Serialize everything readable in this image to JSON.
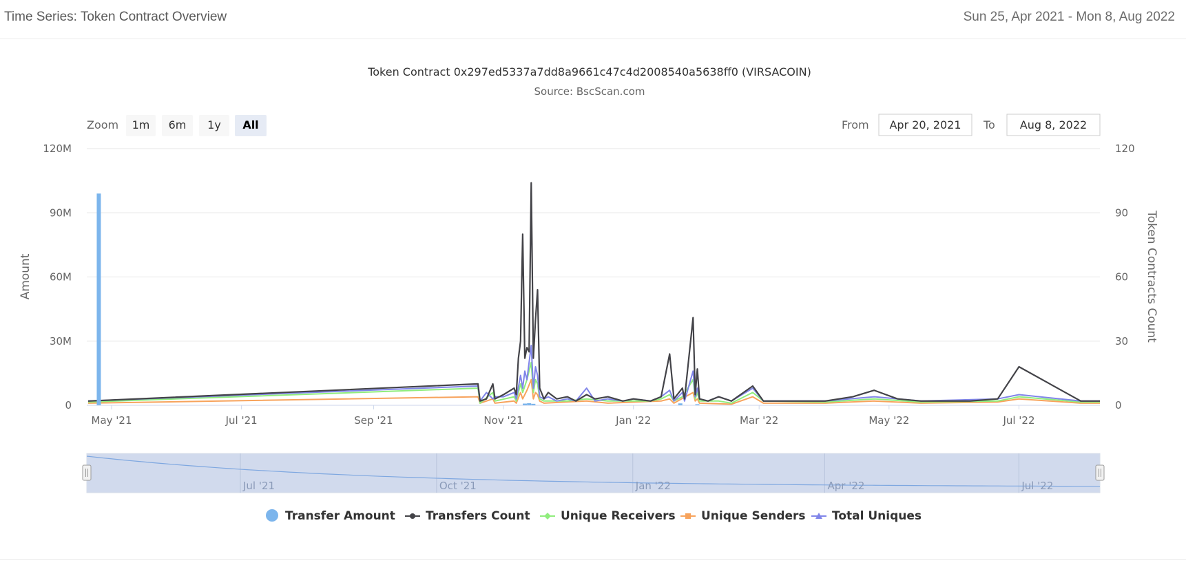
{
  "header": {
    "title": "Time Series: Token Contract Overview",
    "date_range": "Sun 25, Apr 2021 - Mon 8, Aug 2022"
  },
  "controls": {
    "zoom_label": "Zoom",
    "zoom_buttons": [
      "1m",
      "6m",
      "1y",
      "All"
    ],
    "active_zoom": "All",
    "from_label": "From",
    "from_value": "Apr 20, 2021",
    "to_label": "To",
    "to_value": "Aug 8, 2022"
  },
  "navigator": {
    "labels": [
      "Jul '21",
      "Oct '21",
      "Jan '22",
      "Apr '22",
      "Jul '22"
    ]
  },
  "chart_data": {
    "type": "line",
    "title": "Token Contract 0x297ed5337a7dd8a9661c47c4d2008540a5638ff0 (VIRSACOIN)",
    "subtitle": "Source: BscScan.com",
    "x_range": [
      "2021-04-20",
      "2022-08-08"
    ],
    "x_ticks": [
      "May '21",
      "Jul '21",
      "Sep '21",
      "Nov '21",
      "Jan '22",
      "Mar '22",
      "May '22",
      "Jul '22"
    ],
    "y_left": {
      "label": "Amount",
      "range": [
        0,
        120000000
      ],
      "ticks": [
        "0",
        "30M",
        "60M",
        "90M",
        "120M"
      ]
    },
    "y_right": {
      "label": "Token Contracts Count",
      "range": [
        0,
        120
      ],
      "ticks": [
        "0",
        "30",
        "60",
        "90",
        "120"
      ]
    },
    "legend": {
      "position": "bottom"
    },
    "grid": true,
    "colors": {
      "transfer_amount": "#7cb5ec",
      "transfers_count": "#434348",
      "unique_receivers": "#90ed7d",
      "unique_senders": "#f7a35c",
      "total_uniques": "#8085e9"
    },
    "series": [
      {
        "name": "Transfer Amount",
        "axis": "left",
        "kind": "column",
        "points": [
          [
            "2021-04-25",
            99000000
          ],
          [
            "2021-11-11",
            800000
          ],
          [
            "2021-11-13",
            1000000
          ],
          [
            "2021-11-15",
            700000
          ],
          [
            "2022-01-23",
            900000
          ],
          [
            "2022-01-31",
            500000
          ]
        ]
      },
      {
        "name": "Transfers Count",
        "axis": "right",
        "kind": "line",
        "points": [
          [
            "2021-04-20",
            2
          ],
          [
            "2021-10-20",
            10
          ],
          [
            "2021-10-21",
            2
          ],
          [
            "2021-10-24",
            3
          ],
          [
            "2021-10-27",
            10
          ],
          [
            "2021-10-28",
            3
          ],
          [
            "2021-11-01",
            5
          ],
          [
            "2021-11-06",
            8
          ],
          [
            "2021-11-07",
            5
          ],
          [
            "2021-11-08",
            22
          ],
          [
            "2021-11-09",
            30
          ],
          [
            "2021-11-10",
            80
          ],
          [
            "2021-11-11",
            22
          ],
          [
            "2021-11-12",
            27
          ],
          [
            "2021-11-13",
            25
          ],
          [
            "2021-11-14",
            104
          ],
          [
            "2021-11-15",
            22
          ],
          [
            "2021-11-16",
            40
          ],
          [
            "2021-11-17",
            54
          ],
          [
            "2021-11-18",
            8
          ],
          [
            "2021-11-20",
            3
          ],
          [
            "2021-11-22",
            6
          ],
          [
            "2021-11-26",
            3
          ],
          [
            "2021-12-01",
            4
          ],
          [
            "2021-12-05",
            2
          ],
          [
            "2021-12-10",
            5
          ],
          [
            "2021-12-14",
            3
          ],
          [
            "2021-12-20",
            4
          ],
          [
            "2021-12-27",
            2
          ],
          [
            "2022-01-01",
            3
          ],
          [
            "2022-01-09",
            2
          ],
          [
            "2022-01-14",
            4
          ],
          [
            "2022-01-18",
            24
          ],
          [
            "2022-01-20",
            3
          ],
          [
            "2022-01-24",
            8
          ],
          [
            "2022-01-25",
            3
          ],
          [
            "2022-01-29",
            41
          ],
          [
            "2022-01-30",
            5
          ],
          [
            "2022-01-31",
            17
          ],
          [
            "2022-02-01",
            3
          ],
          [
            "2022-02-05",
            2
          ],
          [
            "2022-02-10",
            4
          ],
          [
            "2022-02-16",
            2
          ],
          [
            "2022-02-26",
            9
          ],
          [
            "2022-03-03",
            2
          ],
          [
            "2022-04-01",
            2
          ],
          [
            "2022-04-14",
            4
          ],
          [
            "2022-04-24",
            7
          ],
          [
            "2022-05-05",
            3
          ],
          [
            "2022-05-16",
            2
          ],
          [
            "2022-06-08",
            2
          ],
          [
            "2022-06-21",
            3
          ],
          [
            "2022-07-01",
            18
          ],
          [
            "2022-07-30",
            2
          ],
          [
            "2022-08-08",
            2
          ]
        ]
      },
      {
        "name": "Unique Receivers",
        "axis": "right",
        "kind": "line",
        "points": [
          [
            "2021-04-20",
            1.5
          ],
          [
            "2021-10-20",
            8
          ],
          [
            "2021-10-21",
            1
          ],
          [
            "2021-10-27",
            6
          ],
          [
            "2021-10-28",
            2
          ],
          [
            "2021-11-06",
            4
          ],
          [
            "2021-11-07",
            2
          ],
          [
            "2021-11-09",
            10
          ],
          [
            "2021-11-10",
            6
          ],
          [
            "2021-11-12",
            12
          ],
          [
            "2021-11-14",
            20
          ],
          [
            "2021-11-15",
            6
          ],
          [
            "2021-11-16",
            12
          ],
          [
            "2021-11-17",
            10
          ],
          [
            "2021-11-18",
            3
          ],
          [
            "2021-11-20",
            2
          ],
          [
            "2021-12-01",
            2
          ],
          [
            "2021-12-10",
            3
          ],
          [
            "2021-12-20",
            2
          ],
          [
            "2022-01-09",
            2
          ],
          [
            "2022-01-14",
            3
          ],
          [
            "2022-01-18",
            5
          ],
          [
            "2022-01-20",
            2
          ],
          [
            "2022-01-24",
            4
          ],
          [
            "2022-01-29",
            12
          ],
          [
            "2022-01-30",
            3
          ],
          [
            "2022-01-31",
            6
          ],
          [
            "2022-02-01",
            2
          ],
          [
            "2022-02-10",
            2
          ],
          [
            "2022-02-16",
            1
          ],
          [
            "2022-02-26",
            6
          ],
          [
            "2022-03-03",
            2
          ],
          [
            "2022-04-01",
            1.5
          ],
          [
            "2022-04-24",
            3
          ],
          [
            "2022-05-16",
            1.5
          ],
          [
            "2022-06-21",
            2
          ],
          [
            "2022-07-01",
            4
          ],
          [
            "2022-07-30",
            1.5
          ],
          [
            "2022-08-08",
            1.5
          ]
        ]
      },
      {
        "name": "Unique Senders",
        "axis": "right",
        "kind": "line",
        "points": [
          [
            "2021-04-20",
            1
          ],
          [
            "2021-10-20",
            4
          ],
          [
            "2021-10-21",
            1
          ],
          [
            "2021-10-27",
            3
          ],
          [
            "2021-10-28",
            1
          ],
          [
            "2021-11-06",
            2
          ],
          [
            "2021-11-07",
            1
          ],
          [
            "2021-11-09",
            6
          ],
          [
            "2021-11-10",
            3
          ],
          [
            "2021-11-12",
            7
          ],
          [
            "2021-11-14",
            12
          ],
          [
            "2021-11-15",
            3
          ],
          [
            "2021-11-16",
            6
          ],
          [
            "2021-11-17",
            5
          ],
          [
            "2021-11-18",
            2
          ],
          [
            "2021-11-20",
            1
          ],
          [
            "2021-12-10",
            2
          ],
          [
            "2021-12-20",
            1
          ],
          [
            "2022-01-14",
            2
          ],
          [
            "2022-01-18",
            3
          ],
          [
            "2022-01-20",
            1
          ],
          [
            "2022-01-29",
            6
          ],
          [
            "2022-01-30",
            2
          ],
          [
            "2022-01-31",
            3
          ],
          [
            "2022-02-01",
            1
          ],
          [
            "2022-02-16",
            0.5
          ],
          [
            "2022-02-26",
            4
          ],
          [
            "2022-03-03",
            1
          ],
          [
            "2022-04-01",
            1
          ],
          [
            "2022-04-24",
            2
          ],
          [
            "2022-05-16",
            1
          ],
          [
            "2022-06-21",
            1.5
          ],
          [
            "2022-07-01",
            3
          ],
          [
            "2022-07-30",
            1
          ],
          [
            "2022-08-08",
            1
          ]
        ]
      },
      {
        "name": "Total Uniques",
        "axis": "right",
        "kind": "line",
        "points": [
          [
            "2021-04-20",
            2
          ],
          [
            "2021-10-20",
            9
          ],
          [
            "2021-10-21",
            2
          ],
          [
            "2021-10-24",
            6
          ],
          [
            "2021-10-27",
            3
          ],
          [
            "2021-10-28",
            4
          ],
          [
            "2021-11-01",
            4
          ],
          [
            "2021-11-06",
            6
          ],
          [
            "2021-11-07",
            3
          ],
          [
            "2021-11-09",
            14
          ],
          [
            "2021-11-10",
            8
          ],
          [
            "2021-11-11",
            16
          ],
          [
            "2021-11-12",
            12
          ],
          [
            "2021-11-13",
            20
          ],
          [
            "2021-11-14",
            28
          ],
          [
            "2021-11-15",
            8
          ],
          [
            "2021-11-16",
            18
          ],
          [
            "2021-11-17",
            14
          ],
          [
            "2021-11-18",
            4
          ],
          [
            "2021-11-20",
            3
          ],
          [
            "2021-11-22",
            4
          ],
          [
            "2021-11-26",
            2
          ],
          [
            "2021-12-01",
            3
          ],
          [
            "2021-12-05",
            2
          ],
          [
            "2021-12-10",
            8
          ],
          [
            "2021-12-14",
            2
          ],
          [
            "2021-12-20",
            3
          ],
          [
            "2021-12-27",
            2
          ],
          [
            "2022-01-01",
            3
          ],
          [
            "2022-01-09",
            2
          ],
          [
            "2022-01-14",
            4
          ],
          [
            "2022-01-18",
            7
          ],
          [
            "2022-01-20",
            2
          ],
          [
            "2022-01-24",
            6
          ],
          [
            "2022-01-25",
            2
          ],
          [
            "2022-01-29",
            16
          ],
          [
            "2022-01-30",
            4
          ],
          [
            "2022-01-31",
            8
          ],
          [
            "2022-02-01",
            3
          ],
          [
            "2022-02-05",
            2
          ],
          [
            "2022-02-10",
            4
          ],
          [
            "2022-02-16",
            2
          ],
          [
            "2022-02-26",
            8
          ],
          [
            "2022-03-03",
            2
          ],
          [
            "2022-04-01",
            2
          ],
          [
            "2022-04-24",
            4
          ],
          [
            "2022-05-16",
            2
          ],
          [
            "2022-06-21",
            3
          ],
          [
            "2022-07-01",
            5
          ],
          [
            "2022-07-30",
            2
          ],
          [
            "2022-08-08",
            2
          ]
        ]
      }
    ]
  }
}
